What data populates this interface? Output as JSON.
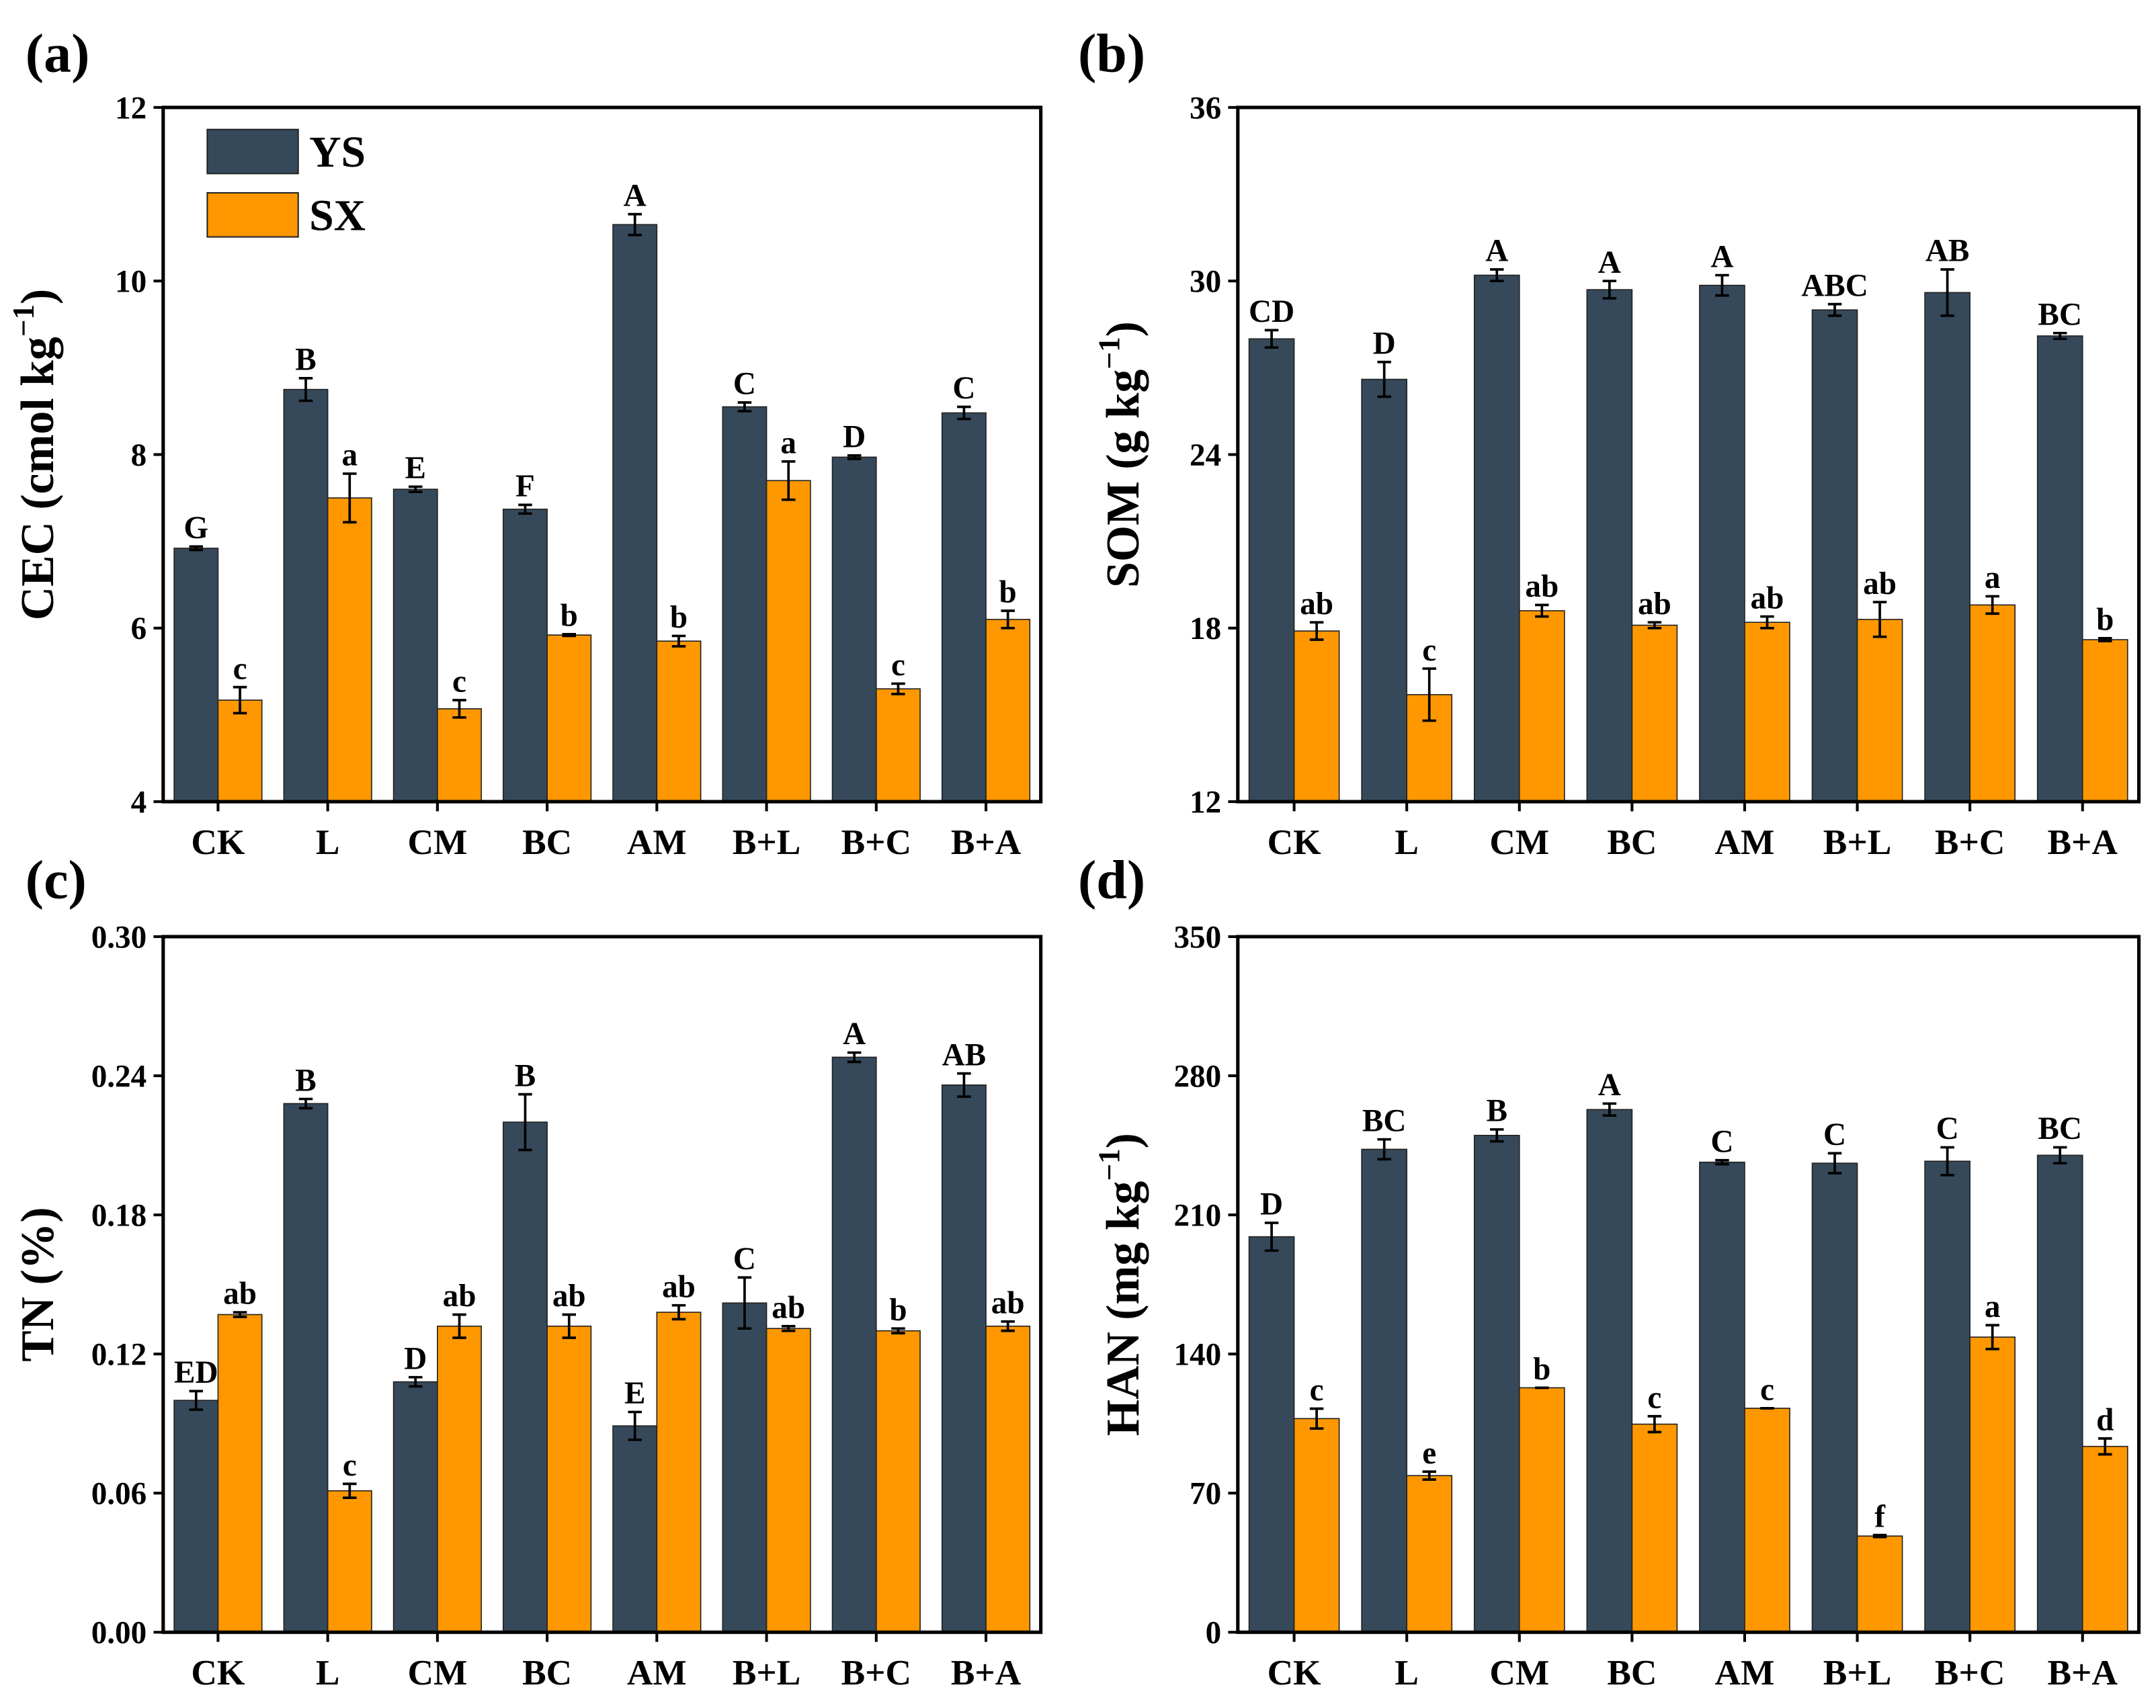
{
  "colors": {
    "YS": "#36495a",
    "SX": "#ff9800"
  },
  "legend": [
    "YS",
    "SX"
  ],
  "chart_data": [
    {
      "type": "bar",
      "panel": "(a)",
      "ylabel": "CEC (cmol kg",
      "ylabel_sup": "−1",
      "ylabel_end": ")",
      "categories": [
        "CK",
        "L",
        "CM",
        "BC",
        "AM",
        "B+L",
        "B+C",
        "B+A"
      ],
      "ylim": [
        4,
        12
      ],
      "yticks": [
        "4",
        "6",
        "8",
        "10",
        "12"
      ],
      "show_legend": true,
      "legend_position": "top-left",
      "series": [
        {
          "name": "YS",
          "values": [
            6.92,
            8.75,
            7.6,
            7.37,
            10.65,
            8.55,
            7.97,
            8.48
          ],
          "errors": [
            0.02,
            0.13,
            0.03,
            0.05,
            0.12,
            0.05,
            0.02,
            0.07
          ],
          "letters": [
            "G",
            "B",
            "E",
            "F",
            "A",
            "C",
            "D",
            "C"
          ]
        },
        {
          "name": "SX",
          "values": [
            5.17,
            7.5,
            5.07,
            5.92,
            5.85,
            7.7,
            5.3,
            6.1
          ],
          "errors": [
            0.15,
            0.28,
            0.1,
            0.01,
            0.06,
            0.22,
            0.06,
            0.1
          ],
          "letters": [
            "c",
            "a",
            "c",
            "b",
            "b",
            "a",
            "c",
            "b"
          ]
        }
      ]
    },
    {
      "type": "bar",
      "panel": "(b)",
      "ylabel": "SOM (g kg",
      "ylabel_sup": "−1",
      "ylabel_end": ")",
      "categories": [
        "CK",
        "L",
        "CM",
        "BC",
        "AM",
        "B+L",
        "B+C",
        "B+A"
      ],
      "ylim": [
        12,
        36
      ],
      "yticks": [
        "12",
        "18",
        "24",
        "30",
        "36"
      ],
      "show_legend": false,
      "series": [
        {
          "name": "YS",
          "values": [
            28.0,
            26.6,
            30.2,
            29.7,
            29.85,
            29.0,
            29.6,
            28.1
          ],
          "errors": [
            0.3,
            0.6,
            0.2,
            0.3,
            0.35,
            0.2,
            0.8,
            0.1
          ],
          "letters": [
            "CD",
            "D",
            "A",
            "A",
            "A",
            "ABC",
            "AB",
            "BC"
          ]
        },
        {
          "name": "SX",
          "values": [
            17.9,
            15.7,
            18.6,
            18.1,
            18.2,
            18.3,
            18.8,
            17.6
          ],
          "errors": [
            0.3,
            0.9,
            0.2,
            0.1,
            0.2,
            0.6,
            0.3,
            0.05
          ],
          "letters": [
            "ab",
            "c",
            "ab",
            "ab",
            "ab",
            "ab",
            "a",
            "b"
          ]
        }
      ]
    },
    {
      "type": "bar",
      "panel": "(c)",
      "ylabel": "TN (%)",
      "ylabel_sup": "",
      "ylabel_end": "",
      "categories": [
        "CK",
        "L",
        "CM",
        "BC",
        "AM",
        "B+L",
        "B+C",
        "B+A"
      ],
      "ylim": [
        0,
        0.3
      ],
      "yticks": [
        "0.00",
        "0.06",
        "0.12",
        "0.18",
        "0.24",
        "0.30"
      ],
      "show_legend": false,
      "series": [
        {
          "name": "YS",
          "values": [
            0.1,
            0.228,
            0.108,
            0.22,
            0.089,
            0.142,
            0.248,
            0.236
          ],
          "errors": [
            0.004,
            0.002,
            0.002,
            0.012,
            0.006,
            0.011,
            0.002,
            0.005
          ],
          "letters": [
            "ED",
            "B",
            "D",
            "B",
            "E",
            "C",
            "A",
            "AB"
          ]
        },
        {
          "name": "SX",
          "values": [
            0.137,
            0.061,
            0.132,
            0.132,
            0.138,
            0.131,
            0.13,
            0.132
          ],
          "errors": [
            0.001,
            0.003,
            0.005,
            0.005,
            0.003,
            0.001,
            0.001,
            0.002
          ],
          "letters": [
            "ab",
            "c",
            "ab",
            "ab",
            "ab",
            "ab",
            "b",
            "ab"
          ]
        }
      ]
    },
    {
      "type": "bar",
      "panel": "(d)",
      "ylabel": "HAN (mg kg",
      "ylabel_sup": "−1",
      "ylabel_end": ")",
      "categories": [
        "CK",
        "L",
        "CM",
        "BC",
        "AM",
        "B+L",
        "B+C",
        "B+A"
      ],
      "ylim": [
        0,
        350
      ],
      "yticks": [
        "0",
        "70",
        "140",
        "210",
        "280",
        "350"
      ],
      "show_legend": false,
      "series": [
        {
          "name": "YS",
          "values": [
            199,
            243,
            250,
            263,
            236.5,
            236,
            237,
            240
          ],
          "errors": [
            7,
            5,
            3,
            3,
            1,
            5,
            7,
            4
          ],
          "letters": [
            "D",
            "BC",
            "B",
            "A",
            "C",
            "C",
            "C",
            "BC"
          ]
        },
        {
          "name": "SX",
          "values": [
            107.5,
            78.8,
            123,
            104.7,
            112.7,
            48.4,
            148.5,
            93.5
          ],
          "errors": [
            5,
            2,
            0,
            4,
            0,
            0.5,
            6,
            4
          ],
          "letters": [
            "c",
            "e",
            "b",
            "c",
            "c",
            "f",
            "a",
            "d"
          ]
        }
      ]
    }
  ]
}
